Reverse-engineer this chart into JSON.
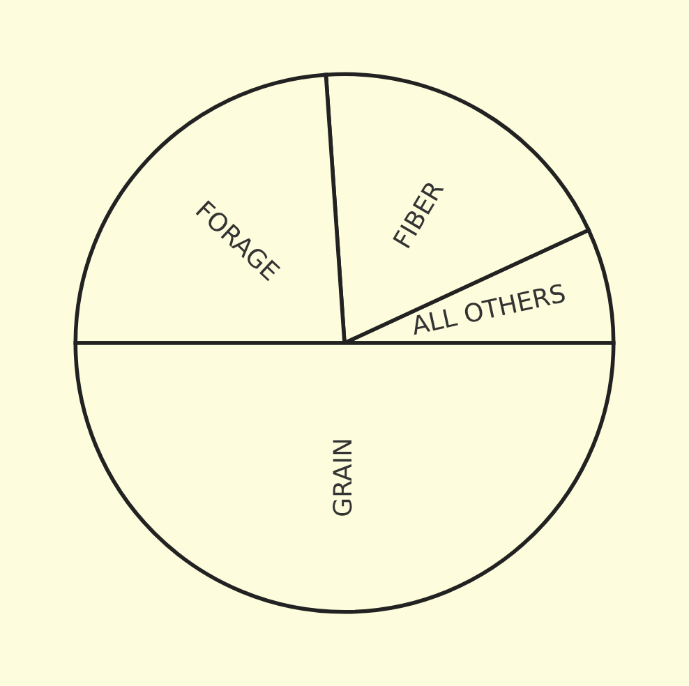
{
  "chart_data": {
    "type": "pie",
    "categories": [
      "ALL OTHERS",
      "FIBER",
      "FORAGE",
      "GRAIN"
    ],
    "values": [
      6.9,
      19.2,
      23.9,
      50.0
    ],
    "colors": [
      "#fdfcdc",
      "#fdfcdc",
      "#fdfcdc",
      "#fdfcdc"
    ]
  }
}
